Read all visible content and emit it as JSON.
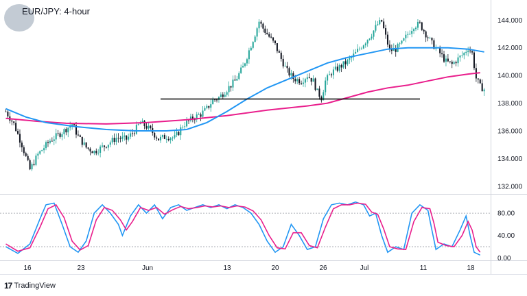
{
  "title": "EUR/JPY: 4-hour",
  "brand": "TradingView",
  "colors": {
    "sma_slow": "#e91e8c",
    "sma_fast": "#2196f3",
    "candle_up": "#26a69a",
    "candle_down": "#131722",
    "support": "#000000",
    "stoch_k": "#2196f3",
    "stoch_d": "#e91e8c"
  },
  "chart_data": [
    {
      "type": "candlestick",
      "ylim": [
        131.5,
        145.2
      ],
      "price_ticks": [
        "144.000",
        "142.000",
        "140.000",
        "138.000",
        "136.000",
        "134.000",
        "132.000"
      ],
      "x_ticks": [
        "16",
        "23",
        "Jun",
        "13",
        "20",
        "26",
        "Jul",
        "11",
        "18"
      ],
      "support_level": 138.3,
      "price_path": [
        [
          0,
          137.4
        ],
        [
          4,
          136.5
        ],
        [
          8,
          135.0
        ],
        [
          12,
          133.2
        ],
        [
          16,
          134.3
        ],
        [
          22,
          135.3
        ],
        [
          28,
          135.9
        ],
        [
          33,
          136.5
        ],
        [
          36,
          135.6
        ],
        [
          40,
          134.8
        ],
        [
          44,
          134.5
        ],
        [
          50,
          135.0
        ],
        [
          55,
          135.5
        ],
        [
          60,
          135.4
        ],
        [
          64,
          136.0
        ],
        [
          67,
          136.6
        ],
        [
          70,
          136.3
        ],
        [
          73,
          135.9
        ],
        [
          76,
          135.4
        ],
        [
          80,
          135.6
        ],
        [
          84,
          135.5
        ],
        [
          86,
          135.9
        ],
        [
          88,
          136.4
        ],
        [
          91,
          136.7
        ],
        [
          94,
          137.0
        ],
        [
          97,
          137.2
        ],
        [
          100,
          137.6
        ],
        [
          103,
          138.2
        ],
        [
          106,
          138.4
        ],
        [
          110,
          139.0
        ],
        [
          114,
          139.6
        ],
        [
          118,
          140.6
        ],
        [
          121,
          141.8
        ],
        [
          124,
          143.0
        ],
        [
          126,
          143.9
        ],
        [
          128,
          143.4
        ],
        [
          131,
          142.8
        ],
        [
          134,
          142.2
        ],
        [
          137,
          141.2
        ],
        [
          140,
          140.3
        ],
        [
          143,
          139.8
        ],
        [
          147,
          139.6
        ],
        [
          150,
          140.0
        ],
        [
          153,
          139.6
        ],
        [
          155,
          138.8
        ],
        [
          157,
          138.4
        ],
        [
          159,
          139.6
        ],
        [
          162,
          140.2
        ],
        [
          166,
          140.6
        ],
        [
          170,
          141.0
        ],
        [
          174,
          141.6
        ],
        [
          178,
          142.3
        ],
        [
          182,
          143.0
        ],
        [
          185,
          143.7
        ],
        [
          187,
          143.9
        ],
        [
          189,
          142.8
        ],
        [
          191,
          141.8
        ],
        [
          194,
          141.9
        ],
        [
          197,
          142.3
        ],
        [
          200,
          143.0
        ],
        [
          203,
          143.6
        ],
        [
          206,
          143.7
        ],
        [
          209,
          143.0
        ],
        [
          212,
          142.3
        ],
        [
          215,
          141.8
        ],
        [
          217,
          141.4
        ],
        [
          219,
          141.0
        ],
        [
          222,
          140.8
        ],
        [
          225,
          141.2
        ],
        [
          228,
          141.6
        ],
        [
          230,
          142.0
        ],
        [
          232,
          141.6
        ],
        [
          234,
          139.8
        ],
        [
          236,
          139.2
        ],
        [
          238,
          139.0
        ]
      ],
      "series": [
        {
          "name": "",
          "points": [
            [
              0,
              136.9
            ],
            [
              15,
              136.7
            ],
            [
              30,
              136.55
            ],
            [
              50,
              136.5
            ],
            [
              70,
              136.6
            ],
            [
              90,
              136.8
            ],
            [
              110,
              137.1
            ],
            [
              130,
              137.5
            ],
            [
              150,
              137.8
            ],
            [
              160,
              138.0
            ],
            [
              170,
              138.4
            ],
            [
              180,
              138.8
            ],
            [
              190,
              139.1
            ],
            [
              200,
              139.3
            ],
            [
              210,
              139.6
            ],
            [
              220,
              139.9
            ],
            [
              230,
              140.1
            ],
            [
              236,
              140.2
            ]
          ]
        },
        {
          "name": "",
          "points": [
            [
              0,
              137.6
            ],
            [
              10,
              137.0
            ],
            [
              20,
              136.6
            ],
            [
              35,
              136.3
            ],
            [
              50,
              136.1
            ],
            [
              65,
              136.0
            ],
            [
              80,
              136.0
            ],
            [
              90,
              136.1
            ],
            [
              100,
              136.6
            ],
            [
              110,
              137.4
            ],
            [
              120,
              138.3
            ],
            [
              130,
              139.1
            ],
            [
              140,
              139.7
            ],
            [
              150,
              140.3
            ],
            [
              160,
              140.9
            ],
            [
              170,
              141.3
            ],
            [
              180,
              141.6
            ],
            [
              190,
              141.9
            ],
            [
              200,
              142.0
            ],
            [
              210,
              142.0
            ],
            [
              220,
              142.0
            ],
            [
              230,
              141.9
            ],
            [
              238,
              141.7
            ]
          ]
        }
      ]
    },
    {
      "type": "line",
      "ylim": [
        -2,
        112
      ],
      "y_ticks": [
        "80.00",
        "40.00",
        "0.00"
      ],
      "reference_lines": [
        80,
        20
      ],
      "series": [
        {
          "name": "",
          "points": [
            [
              0,
              20
            ],
            [
              6,
              8
            ],
            [
              12,
              25
            ],
            [
              17,
              70
            ],
            [
              20,
              95
            ],
            [
              24,
              98
            ],
            [
              28,
              60
            ],
            [
              32,
              20
            ],
            [
              36,
              10
            ],
            [
              40,
              30
            ],
            [
              44,
              80
            ],
            [
              48,
              95
            ],
            [
              52,
              80
            ],
            [
              56,
              60
            ],
            [
              58,
              40
            ],
            [
              62,
              75
            ],
            [
              66,
              95
            ],
            [
              70,
              80
            ],
            [
              74,
              95
            ],
            [
              78,
              70
            ],
            [
              82,
              90
            ],
            [
              86,
              95
            ],
            [
              90,
              85
            ],
            [
              94,
              90
            ],
            [
              98,
              95
            ],
            [
              102,
              90
            ],
            [
              106,
              95
            ],
            [
              110,
              88
            ],
            [
              114,
              95
            ],
            [
              118,
              90
            ],
            [
              122,
              80
            ],
            [
              126,
              60
            ],
            [
              130,
              30
            ],
            [
              134,
              10
            ],
            [
              138,
              20
            ],
            [
              142,
              60
            ],
            [
              146,
              40
            ],
            [
              150,
              15
            ],
            [
              154,
              20
            ],
            [
              158,
              70
            ],
            [
              162,
              95
            ],
            [
              166,
              98
            ],
            [
              170,
              95
            ],
            [
              174,
              100
            ],
            [
              178,
              95
            ],
            [
              181,
              75
            ],
            [
              184,
              80
            ],
            [
              187,
              40
            ],
            [
              190,
              10
            ],
            [
              194,
              20
            ],
            [
              198,
              15
            ],
            [
              202,
              80
            ],
            [
              206,
              95
            ],
            [
              210,
              85
            ],
            [
              212,
              50
            ],
            [
              214,
              15
            ],
            [
              218,
              25
            ],
            [
              222,
              20
            ],
            [
              226,
              50
            ],
            [
              229,
              75
            ],
            [
              231,
              40
            ],
            [
              233,
              10
            ],
            [
              236,
              5
            ]
          ]
        },
        {
          "name": "",
          "points": [
            [
              0,
              25
            ],
            [
              6,
              12
            ],
            [
              12,
              18
            ],
            [
              17,
              55
            ],
            [
              21,
              88
            ],
            [
              25,
              95
            ],
            [
              29,
              72
            ],
            [
              33,
              30
            ],
            [
              37,
              14
            ],
            [
              41,
              22
            ],
            [
              45,
              68
            ],
            [
              49,
              90
            ],
            [
              53,
              85
            ],
            [
              57,
              68
            ],
            [
              60,
              50
            ],
            [
              63,
              65
            ],
            [
              67,
              90
            ],
            [
              71,
              85
            ],
            [
              75,
              90
            ],
            [
              79,
              78
            ],
            [
              83,
              86
            ],
            [
              87,
              92
            ],
            [
              91,
              88
            ],
            [
              95,
              90
            ],
            [
              99,
              93
            ],
            [
              103,
              91
            ],
            [
              107,
              93
            ],
            [
              111,
              90
            ],
            [
              115,
              93
            ],
            [
              119,
              91
            ],
            [
              123,
              84
            ],
            [
              127,
              68
            ],
            [
              131,
              40
            ],
            [
              135,
              18
            ],
            [
              139,
              16
            ],
            [
              143,
              45
            ],
            [
              147,
              45
            ],
            [
              151,
              22
            ],
            [
              155,
              18
            ],
            [
              159,
              55
            ],
            [
              163,
              88
            ],
            [
              167,
              95
            ],
            [
              171,
              95
            ],
            [
              175,
              98
            ],
            [
              179,
              96
            ],
            [
              182,
              82
            ],
            [
              185,
              78
            ],
            [
              188,
              52
            ],
            [
              191,
              20
            ],
            [
              195,
              16
            ],
            [
              199,
              15
            ],
            [
              203,
              65
            ],
            [
              207,
              90
            ],
            [
              211,
              88
            ],
            [
              213,
              62
            ],
            [
              215,
              28
            ],
            [
              219,
              22
            ],
            [
              223,
              20
            ],
            [
              227,
              40
            ],
            [
              230,
              65
            ],
            [
              232,
              50
            ],
            [
              234,
              20
            ],
            [
              236,
              10
            ]
          ]
        }
      ]
    }
  ]
}
